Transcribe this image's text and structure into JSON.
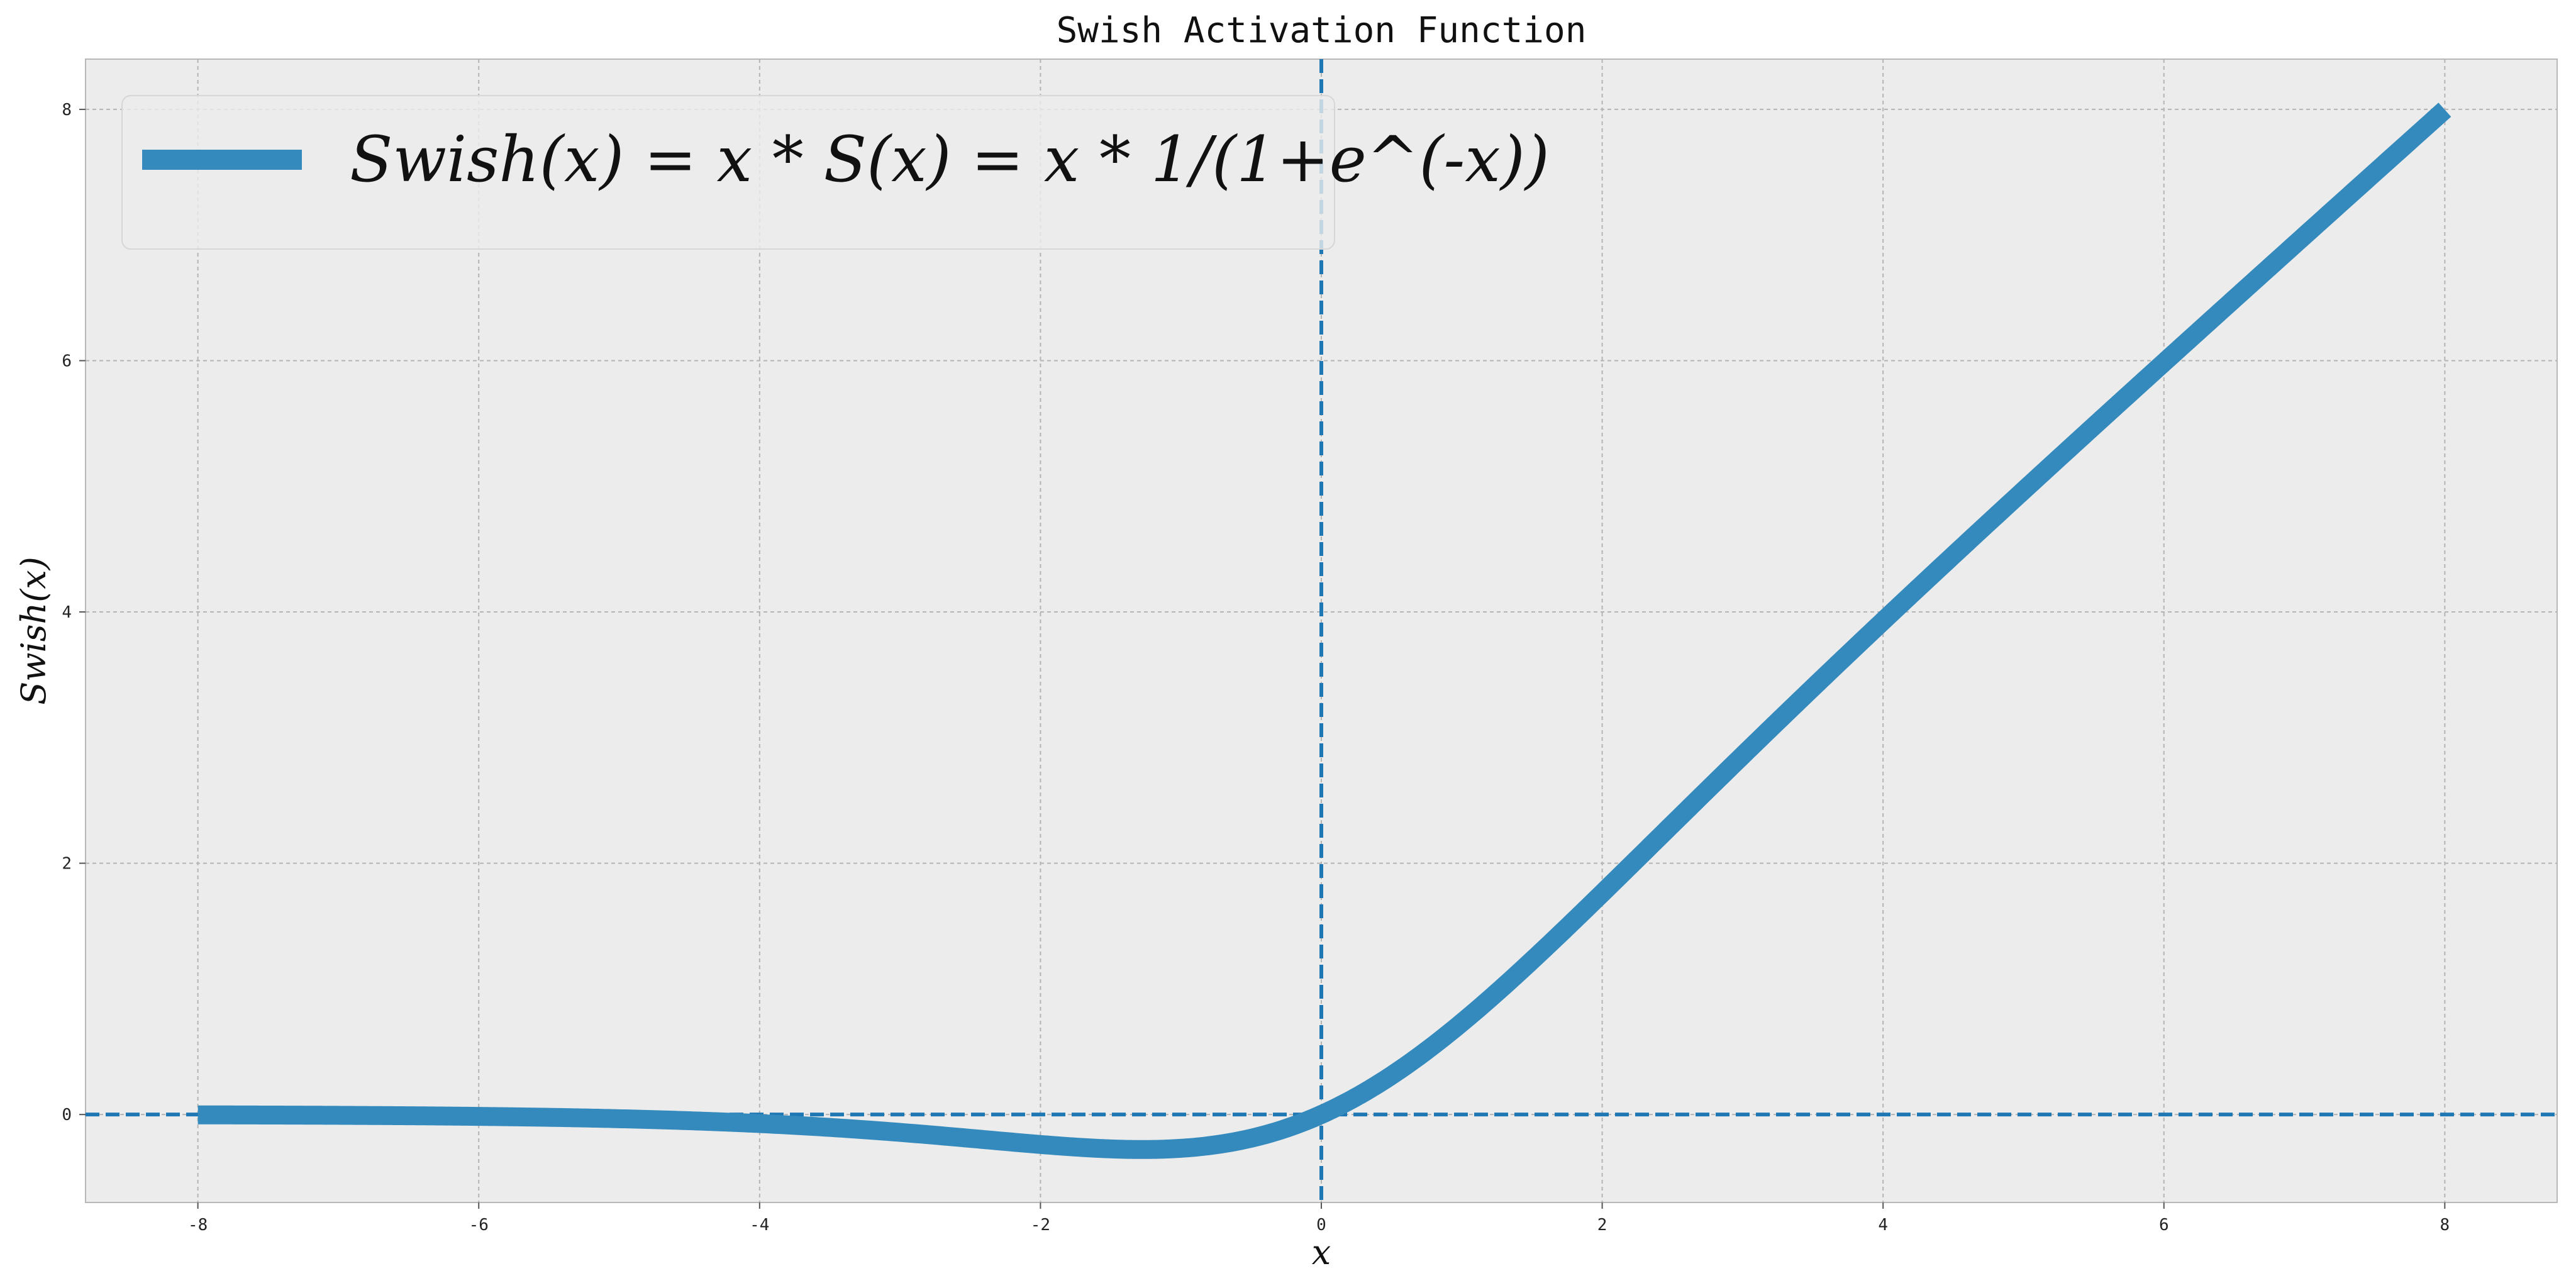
{
  "chart_data": {
    "type": "line",
    "title": "Swish Activation Function",
    "xlabel": "x",
    "ylabel": "Swish(x)",
    "xlim": [
      -8.8,
      8.8
    ],
    "ylim": [
      -0.7,
      8.4
    ],
    "xticks": [
      -8,
      -6,
      -4,
      -2,
      0,
      2,
      4,
      6,
      8
    ],
    "yticks": [
      0,
      2,
      4,
      6,
      8
    ],
    "xtick_labels": [
      "-8",
      "-6",
      "-4",
      "-2",
      "0",
      "2",
      "4",
      "6",
      "8"
    ],
    "ytick_labels": [
      "0",
      "2",
      "4",
      "6",
      "8"
    ],
    "grid": true,
    "legend_placement": "top-left",
    "series": [
      {
        "name": "Swish(x) = x * S(x) = x * 1/(1+e^(-x))",
        "color": "#348abd",
        "x_range": [
          -8,
          8
        ],
        "x": [
          -8,
          -7,
          -6,
          -5,
          -4,
          -3,
          -2,
          -1.5,
          -1.28,
          -1,
          -0.5,
          0,
          0.5,
          1,
          1.5,
          2,
          3,
          4,
          5,
          6,
          7,
          8
        ],
        "y": [
          -0.003,
          -0.006,
          -0.015,
          -0.033,
          -0.072,
          -0.142,
          -0.238,
          -0.274,
          -0.278,
          -0.269,
          -0.189,
          0,
          0.311,
          0.731,
          1.226,
          1.762,
          2.858,
          3.928,
          4.967,
          5.985,
          6.994,
          7.997
        ]
      }
    ],
    "reference_lines": [
      {
        "orientation": "vertical",
        "value": 0,
        "color": "#1f77b4",
        "style": "dashed"
      },
      {
        "orientation": "horizontal",
        "value": 0,
        "color": "#1f77b4",
        "style": "dashed"
      }
    ],
    "colors": {
      "plot_background": "#ececec",
      "grid": "#b4b4b4",
      "line": "#348abd",
      "reference": "#1f77b4"
    }
  }
}
